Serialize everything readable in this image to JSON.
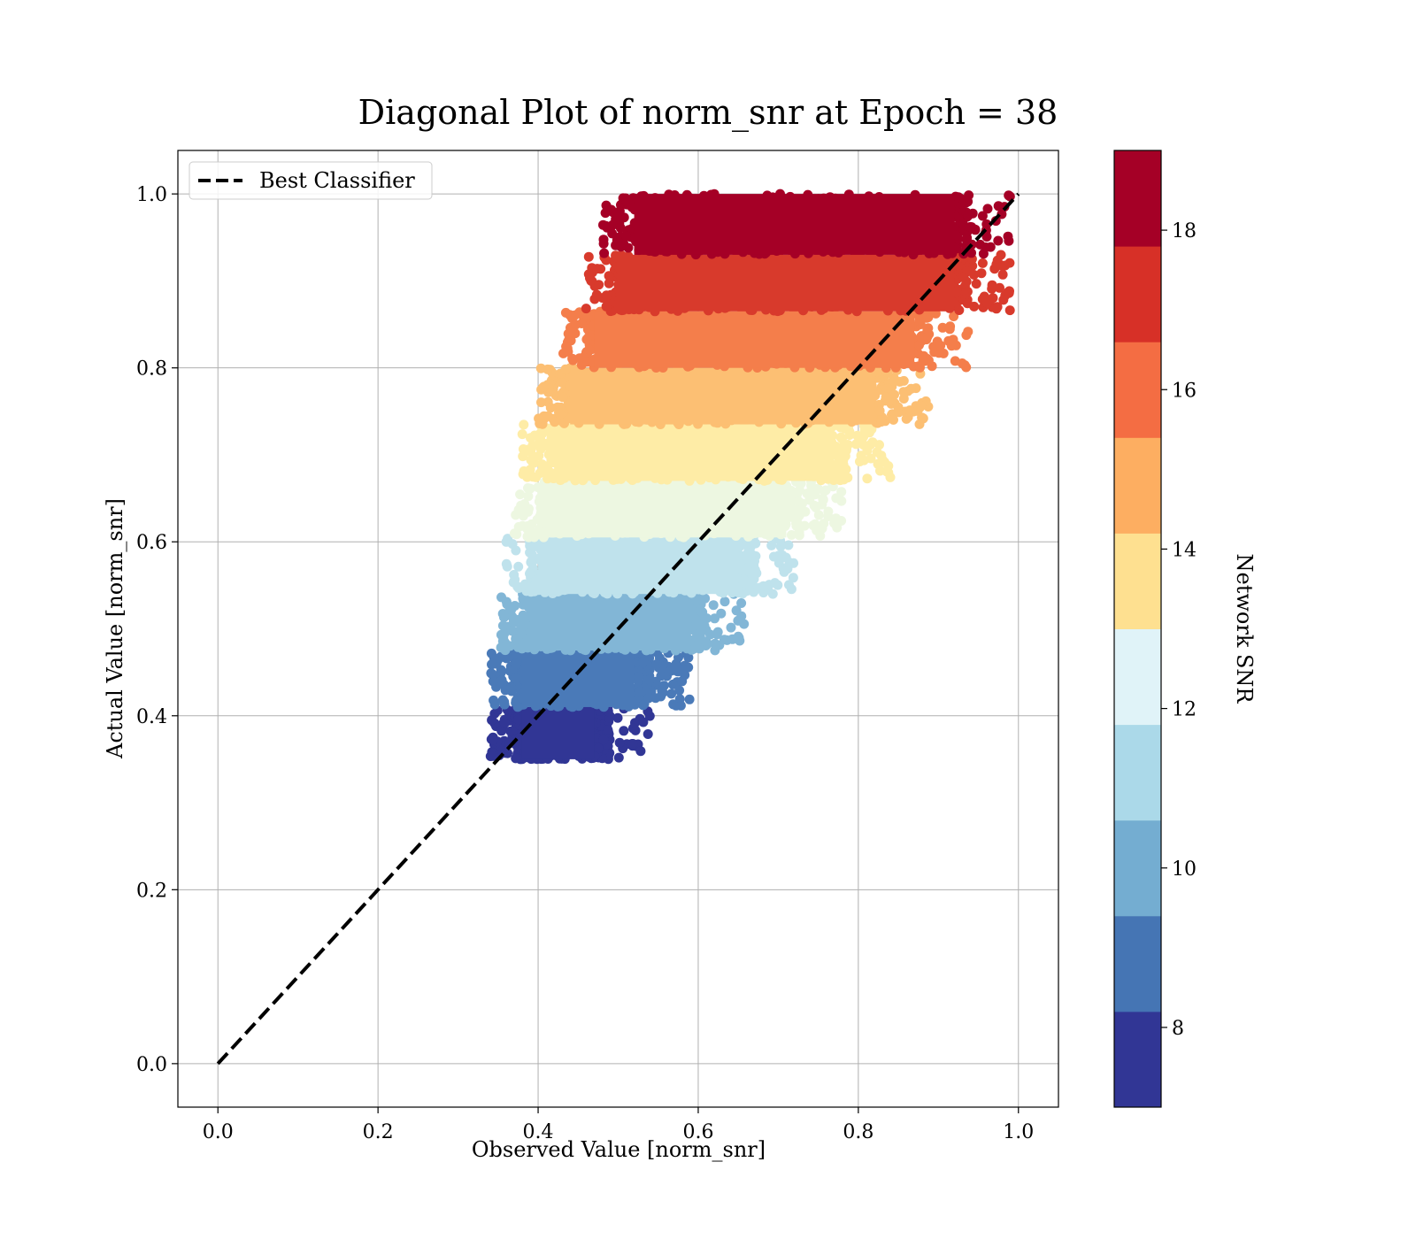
{
  "chart_data": {
    "type": "scatter",
    "title": "Diagonal Plot of norm_snr at Epoch = 38",
    "xlabel": "Observed Value [norm_snr]",
    "ylabel": "Actual Value [norm_snr]",
    "xlim": [
      -0.05,
      1.05
    ],
    "ylim": [
      -0.05,
      1.05
    ],
    "x_ticks": [
      "0.0",
      "0.2",
      "0.4",
      "0.6",
      "0.8",
      "1.0"
    ],
    "y_ticks": [
      "0.0",
      "0.2",
      "0.4",
      "0.6",
      "0.8",
      "1.0"
    ],
    "grid": true,
    "legend": {
      "position": "top-left",
      "entries": [
        "Best Classifier"
      ]
    },
    "reference_line": {
      "name": "Best Classifier",
      "style": "dashed",
      "color": "#000000",
      "x": [
        0,
        1
      ],
      "y": [
        0,
        1
      ]
    },
    "colorbar": {
      "label": "Network SNR",
      "range": [
        7,
        19
      ],
      "ticks": [
        "8",
        "10",
        "12",
        "14",
        "16",
        "18"
      ],
      "tick_values": [
        8,
        10,
        12,
        14,
        16,
        18
      ],
      "colors": [
        "#313695",
        "#4575b4",
        "#74add1",
        "#abd9e9",
        "#e0f3f8",
        "#fee090",
        "#fdae61",
        "#f46d43",
        "#d73027",
        "#a50026"
      ],
      "band_colors_used_in_plot": [
        "#313695",
        "#4a7ab8",
        "#82b6d6",
        "#bfe2ec",
        "#edf7e1",
        "#feeca6",
        "#fcbf73",
        "#f47e4b",
        "#d83a2c",
        "#a50026"
      ]
    },
    "point_bands": [
      {
        "snr_band": [
          7.0,
          8.2
        ],
        "color": "#313695",
        "y_range": [
          0.35,
          0.41
        ],
        "x_range": [
          0.34,
          0.52
        ]
      },
      {
        "snr_band": [
          8.2,
          9.4
        ],
        "color": "#4a7ab8",
        "y_range": [
          0.41,
          0.475
        ],
        "x_range": [
          0.34,
          0.57
        ]
      },
      {
        "snr_band": [
          9.4,
          10.6
        ],
        "color": "#82b6d6",
        "y_range": [
          0.475,
          0.54
        ],
        "x_range": [
          0.35,
          0.64
        ]
      },
      {
        "snr_band": [
          10.6,
          11.8
        ],
        "color": "#bfe2ec",
        "y_range": [
          0.54,
          0.605
        ],
        "x_range": [
          0.36,
          0.7
        ]
      },
      {
        "snr_band": [
          11.8,
          13.0
        ],
        "color": "#edf7e1",
        "y_range": [
          0.605,
          0.67
        ],
        "x_range": [
          0.37,
          0.76
        ]
      },
      {
        "snr_band": [
          13.0,
          14.2
        ],
        "color": "#feeca6",
        "y_range": [
          0.67,
          0.735
        ],
        "x_range": [
          0.38,
          0.82
        ]
      },
      {
        "snr_band": [
          14.2,
          15.4
        ],
        "color": "#fcbf73",
        "y_range": [
          0.735,
          0.8
        ],
        "x_range": [
          0.4,
          0.87
        ]
      },
      {
        "snr_band": [
          15.4,
          16.6
        ],
        "color": "#f47e4b",
        "y_range": [
          0.8,
          0.865
        ],
        "x_range": [
          0.43,
          0.92
        ]
      },
      {
        "snr_band": [
          16.6,
          17.8
        ],
        "color": "#d83a2c",
        "y_range": [
          0.865,
          0.93
        ],
        "x_range": [
          0.46,
          0.97
        ]
      },
      {
        "snr_band": [
          17.8,
          19.0
        ],
        "color": "#a50026",
        "y_range": [
          0.93,
          1.0
        ],
        "x_range": [
          0.48,
          0.97
        ]
      }
    ]
  }
}
